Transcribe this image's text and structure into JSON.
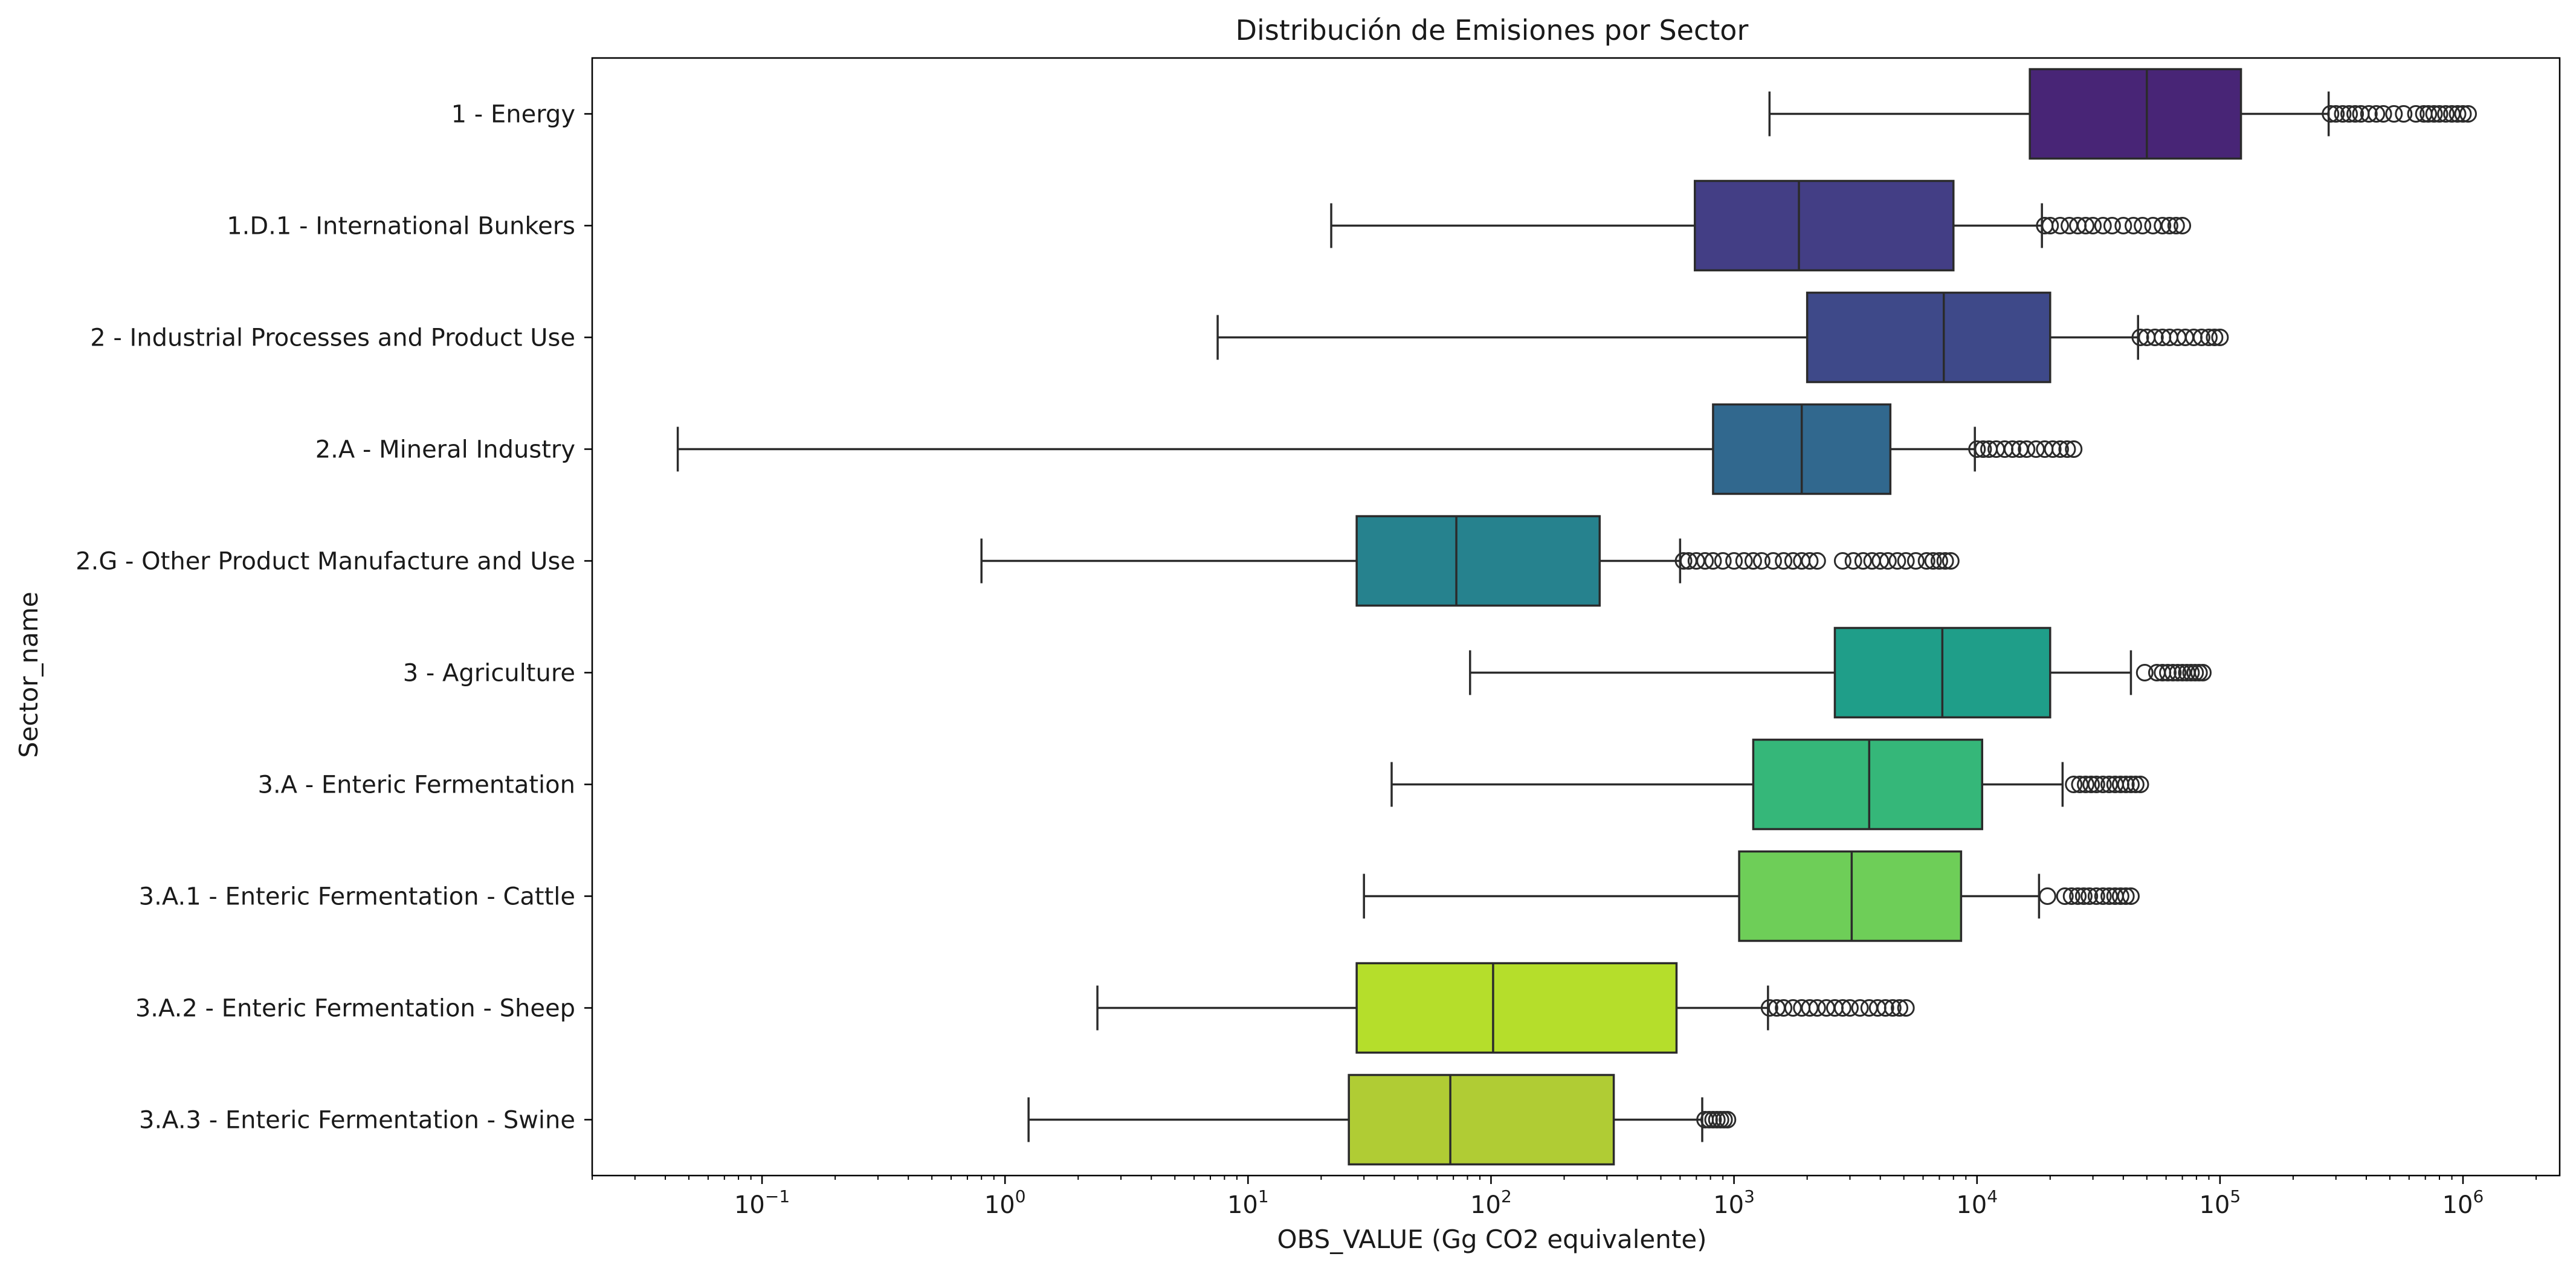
{
  "chart_data": {
    "type": "boxplot",
    "orientation": "horizontal",
    "title": "Distribución de Emisiones por Sector",
    "xlabel": "OBS_VALUE (Gg CO2 equivalente)",
    "ylabel": "Sector_name",
    "xscale": "log",
    "xlim": [
      0.02,
      2500000
    ],
    "grid": false,
    "legend": "none",
    "xticks": [
      {
        "value": 0.1,
        "base": "10",
        "exp": "−1"
      },
      {
        "value": 1,
        "base": "10",
        "exp": "0"
      },
      {
        "value": 10,
        "base": "10",
        "exp": "1"
      },
      {
        "value": 100,
        "base": "10",
        "exp": "2"
      },
      {
        "value": 1000,
        "base": "10",
        "exp": "3"
      },
      {
        "value": 10000,
        "base": "10",
        "exp": "4"
      },
      {
        "value": 100000,
        "base": "10",
        "exp": "5"
      },
      {
        "value": 1000000,
        "base": "10",
        "exp": "6"
      }
    ],
    "series": [
      {
        "name": "1 - Energy",
        "color": "#482576",
        "whisker_low": 1400,
        "q1": 16500,
        "median": 50000,
        "q3": 122000,
        "whisker_high": 280000,
        "outliers": [
          285000,
          300000,
          320000,
          340000,
          360000,
          380000,
          410000,
          440000,
          470000,
          520000,
          570000,
          640000,
          690000,
          720000,
          760000,
          800000,
          850000,
          900000,
          950000,
          1000000,
          1050000
        ]
      },
      {
        "name": "1.D.1 - International Bunkers",
        "color": "#433e85",
        "whisker_low": 22,
        "q1": 690,
        "median": 1850,
        "q3": 8000,
        "whisker_high": 18500,
        "outliers": [
          19000,
          20000,
          22000,
          24000,
          26000,
          28000,
          30000,
          33000,
          36000,
          40000,
          44000,
          48000,
          53000,
          58000,
          62000,
          66000,
          70000
        ]
      },
      {
        "name": "2 - Industrial Processes and Product Use",
        "color": "#3e4989",
        "whisker_low": 7.5,
        "q1": 2000,
        "median": 7300,
        "q3": 20000,
        "whisker_high": 46000,
        "outliers": [
          47000,
          50000,
          54000,
          58000,
          62000,
          67000,
          72000,
          78000,
          84000,
          90000,
          95000,
          100000
        ]
      },
      {
        "name": "2.A - Mineral Industry",
        "color": "#31688e",
        "whisker_low": 0.045,
        "q1": 820,
        "median": 1900,
        "q3": 4400,
        "whisker_high": 9800,
        "outliers": [
          10000,
          10600,
          11200,
          12000,
          13000,
          14000,
          15000,
          16000,
          17500,
          19000,
          20500,
          22000,
          23500,
          25000
        ]
      },
      {
        "name": "2.G - Other Product Manufacture and Use",
        "color": "#26828e",
        "whisker_low": 0.8,
        "q1": 28,
        "median": 72,
        "q3": 280,
        "whisker_high": 600,
        "outliers": [
          620,
          650,
          700,
          760,
          820,
          900,
          1000,
          1100,
          1200,
          1300,
          1450,
          1600,
          1750,
          1900,
          2050,
          2200,
          2800,
          3100,
          3400,
          3700,
          4000,
          4300,
          4700,
          5100,
          5600,
          6200,
          6600,
          7000,
          7400,
          7800
        ]
      },
      {
        "name": "3 - Agriculture",
        "color": "#1f9e89",
        "whisker_low": 82,
        "q1": 2600,
        "median": 7200,
        "q3": 20000,
        "whisker_high": 43000,
        "outliers": [
          49000,
          55000,
          58000,
          61000,
          64000,
          67000,
          70000,
          73000,
          76000,
          79000,
          82000,
          85000
        ]
      },
      {
        "name": "3.A - Enteric Fermentation",
        "color": "#35b779",
        "whisker_low": 39,
        "q1": 1200,
        "median": 3600,
        "q3": 10500,
        "whisker_high": 22500,
        "outliers": [
          25000,
          26500,
          28000,
          29500,
          31000,
          33000,
          35000,
          37000,
          39000,
          41000,
          43000,
          45000,
          47000
        ]
      },
      {
        "name": "3.A.1 - Enteric Fermentation - Cattle",
        "color": "#6ece58",
        "whisker_low": 30,
        "q1": 1050,
        "median": 3050,
        "q3": 8600,
        "whisker_high": 18000,
        "outliers": [
          19500,
          23000,
          24500,
          26000,
          27500,
          29000,
          31000,
          33000,
          35000,
          37000,
          39000,
          41000,
          43000
        ]
      },
      {
        "name": "3.A.2 - Enteric Fermentation - Sheep",
        "color": "#b5de2b",
        "whisker_low": 2.4,
        "q1": 28,
        "median": 102,
        "q3": 580,
        "whisker_high": 1380,
        "outliers": [
          1400,
          1500,
          1600,
          1750,
          1900,
          2050,
          2200,
          2400,
          2600,
          2800,
          3000,
          3300,
          3600,
          3900,
          4200,
          4500,
          4800,
          5100
        ]
      },
      {
        "name": "3.A.3 - Enteric Fermentation - Swine",
        "color": "#b0cc34",
        "whisker_low": 1.25,
        "q1": 26,
        "median": 68,
        "q3": 320,
        "whisker_high": 740,
        "outliers": [
          760,
          790,
          820,
          850,
          880,
          910,
          940
        ]
      }
    ]
  }
}
